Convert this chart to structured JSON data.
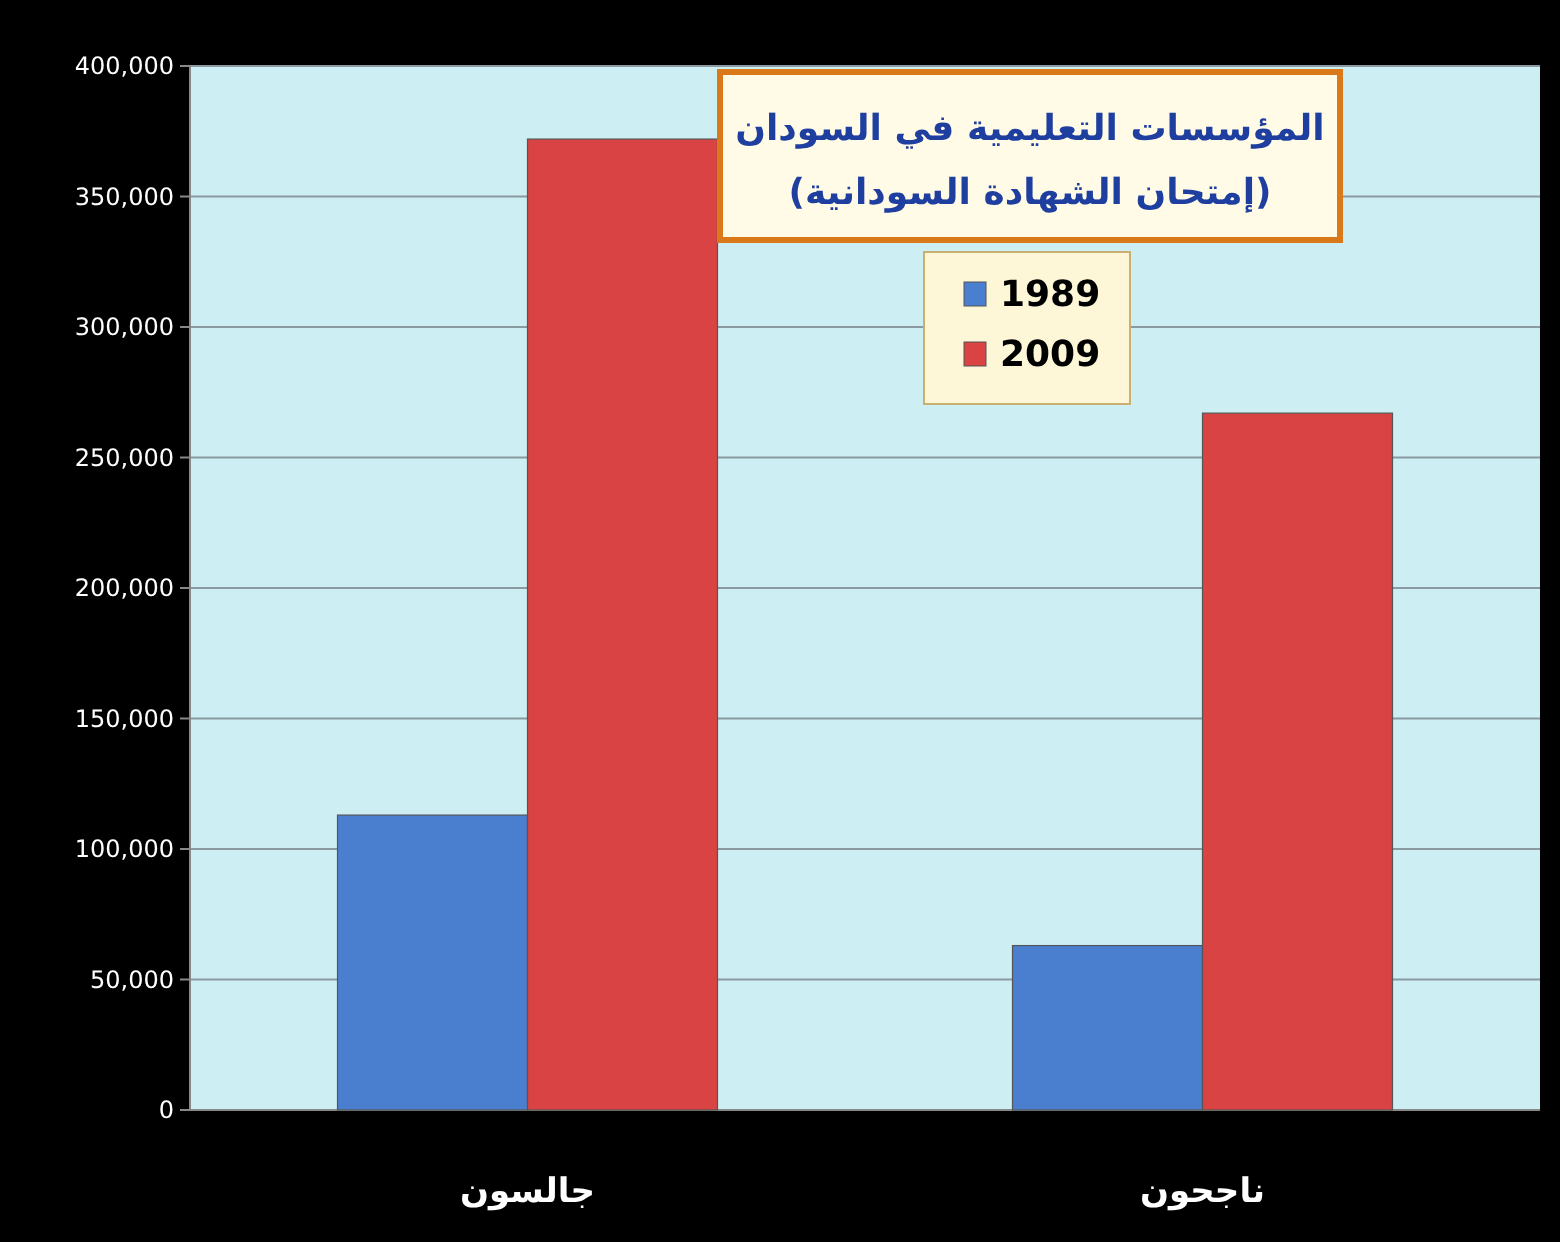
{
  "chart_data": {
    "type": "bar",
    "title": "المؤسسات التعليمية في السودان",
    "subtitle": "(إمتحان الشهادة السودانية)",
    "categories": [
      "جالسون",
      "ناجحون"
    ],
    "series": [
      {
        "name": "1989",
        "color": "#4a7fd0",
        "values": [
          113000,
          63000
        ]
      },
      {
        "name": "2009",
        "color": "#d94343",
        "values": [
          372000,
          267000
        ]
      }
    ],
    "ylim": [
      0,
      400000
    ],
    "yticks": [
      {
        "value": 0,
        "label": "0"
      },
      {
        "value": 50000,
        "label": "50,000"
      },
      {
        "value": 100000,
        "label": "100,000"
      },
      {
        "value": 150000,
        "label": "150,000"
      },
      {
        "value": 200000,
        "label": "200,000"
      },
      {
        "value": 250000,
        "label": "250,000"
      },
      {
        "value": 300000,
        "label": "300,000"
      },
      {
        "value": 350000,
        "label": "350,000"
      },
      {
        "value": 400000,
        "label": "400,000"
      }
    ],
    "grid": "y",
    "legend": "top"
  }
}
